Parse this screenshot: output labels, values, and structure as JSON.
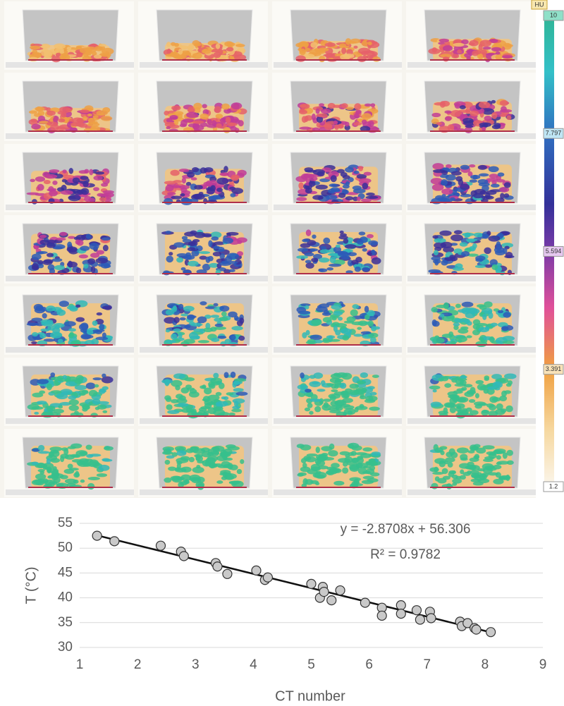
{
  "chart_data": [
    {
      "type": "colorbar",
      "title": "HU",
      "lim": [
        1.2,
        10
      ],
      "ticks": [
        10,
        7.797,
        5.594,
        3.391,
        1.2
      ]
    },
    {
      "type": "scatter",
      "x_label": "CT number",
      "y_label": "T (°C)",
      "xlim": [
        1,
        9
      ],
      "xticks": [
        1,
        2,
        3,
        4,
        5,
        6,
        7,
        8,
        9
      ],
      "ylim": [
        30,
        55
      ],
      "yticks": [
        30,
        35,
        40,
        45,
        50,
        55
      ],
      "grid": true,
      "color": "#c9c9c9",
      "x": [
        1.3,
        1.6,
        2.4,
        2.75,
        2.8,
        3.35,
        3.38,
        3.55,
        4.05,
        4.2,
        4.25,
        5.0,
        5.2,
        5.15,
        5.22,
        5.35,
        5.5,
        5.93,
        6.22,
        6.22,
        6.55,
        6.55,
        6.82,
        6.88,
        7.05,
        7.07,
        7.57,
        7.6,
        7.7,
        7.82,
        7.85,
        8.1
      ],
      "values": [
        52.5,
        51.4,
        50.5,
        49.3,
        48.4,
        47,
        46.3,
        44.8,
        45.5,
        43.6,
        44.1,
        42.8,
        42.2,
        40,
        41.2,
        39.5,
        41.5,
        39,
        38,
        36.4,
        38.5,
        36.8,
        37.5,
        35.6,
        37.2,
        35.9,
        35.2,
        34.3,
        34.9,
        33.9,
        33.6,
        33.1
      ],
      "trendline": {
        "slope": -2.8708,
        "intercept": 56.306
      },
      "annotations": [
        "y = -2.8708x + 56.306",
        "R² = 0.9782"
      ]
    }
  ]
}
